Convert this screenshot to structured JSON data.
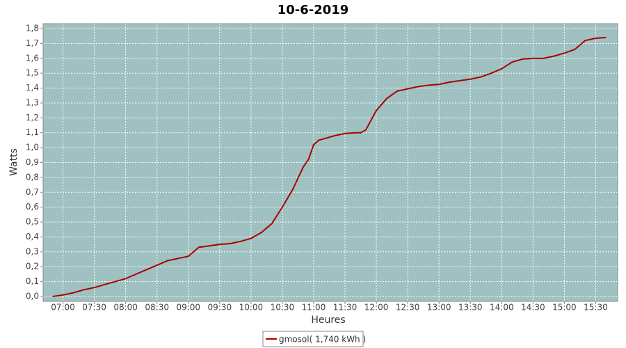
{
  "chart_data": {
    "type": "line",
    "title": "10-6-2019",
    "x_label": "Heures",
    "y_label": "Watts",
    "x": [
      "06:50",
      "07:00",
      "07:10",
      "07:20",
      "07:30",
      "07:40",
      "07:50",
      "08:00",
      "08:10",
      "08:20",
      "08:30",
      "08:40",
      "08:50",
      "09:00",
      "09:10",
      "09:20",
      "09:30",
      "09:40",
      "09:50",
      "10:00",
      "10:10",
      "10:20",
      "10:30",
      "10:40",
      "10:50",
      "10:55",
      "11:00",
      "11:05",
      "11:10",
      "11:20",
      "11:30",
      "11:40",
      "11:45",
      "11:50",
      "12:00",
      "12:10",
      "12:20",
      "12:30",
      "12:40",
      "12:50",
      "13:00",
      "13:10",
      "13:20",
      "13:30",
      "13:40",
      "13:50",
      "14:00",
      "14:10",
      "14:20",
      "14:30",
      "14:40",
      "14:50",
      "15:00",
      "15:10",
      "15:20",
      "15:30",
      "15:40"
    ],
    "series": [
      {
        "name": "gmosol( 1,740 kWh )",
        "color": "#aa0000",
        "values": [
          0.0,
          0.01,
          0.025,
          0.045,
          0.06,
          0.08,
          0.1,
          0.12,
          0.15,
          0.18,
          0.21,
          0.24,
          0.255,
          0.27,
          0.33,
          0.34,
          0.35,
          0.355,
          0.37,
          0.39,
          0.43,
          0.49,
          0.6,
          0.72,
          0.87,
          0.92,
          1.02,
          1.05,
          1.06,
          1.08,
          1.095,
          1.1,
          1.1,
          1.12,
          1.25,
          1.33,
          1.38,
          1.395,
          1.41,
          1.42,
          1.425,
          1.44,
          1.45,
          1.46,
          1.475,
          1.5,
          1.53,
          1.575,
          1.595,
          1.6,
          1.6,
          1.615,
          1.635,
          1.66,
          1.72,
          1.735,
          1.74
        ]
      }
    ],
    "xlim": [
      "06:41",
      "15:51"
    ],
    "xticks": [
      "07:00",
      "07:30",
      "08:00",
      "08:30",
      "09:00",
      "09:30",
      "10:00",
      "10:30",
      "11:00",
      "11:30",
      "12:00",
      "12:30",
      "13:00",
      "13:30",
      "14:00",
      "14:30",
      "15:00",
      "15:30"
    ],
    "ylim": [
      -0.033,
      1.833
    ],
    "yticks": [
      {
        "value": 0,
        "label": "0,0"
      },
      {
        "value": 0.1,
        "label": "0,1"
      },
      {
        "value": 0.2,
        "label": "0,2"
      },
      {
        "value": 0.3,
        "label": "0,3"
      },
      {
        "value": 0.4,
        "label": "0,4"
      },
      {
        "value": 0.5,
        "label": "0,5"
      },
      {
        "value": 0.6,
        "label": "0,6"
      },
      {
        "value": 0.7,
        "label": "0,7"
      },
      {
        "value": 0.8,
        "label": "0,8"
      },
      {
        "value": 0.9,
        "label": "0,9"
      },
      {
        "value": 1.0,
        "label": "1,0"
      },
      {
        "value": 1.1,
        "label": "1,1"
      },
      {
        "value": 1.2,
        "label": "1,2"
      },
      {
        "value": 1.3,
        "label": "1,3"
      },
      {
        "value": 1.4,
        "label": "1,4"
      },
      {
        "value": 1.5,
        "label": "1,5"
      },
      {
        "value": 1.6,
        "label": "1,6"
      },
      {
        "value": 1.7,
        "label": "1,7"
      },
      {
        "value": 1.8,
        "label": "1,8"
      }
    ],
    "grid": true,
    "plot_background": "#9fc1c1",
    "legend": "bottom"
  }
}
